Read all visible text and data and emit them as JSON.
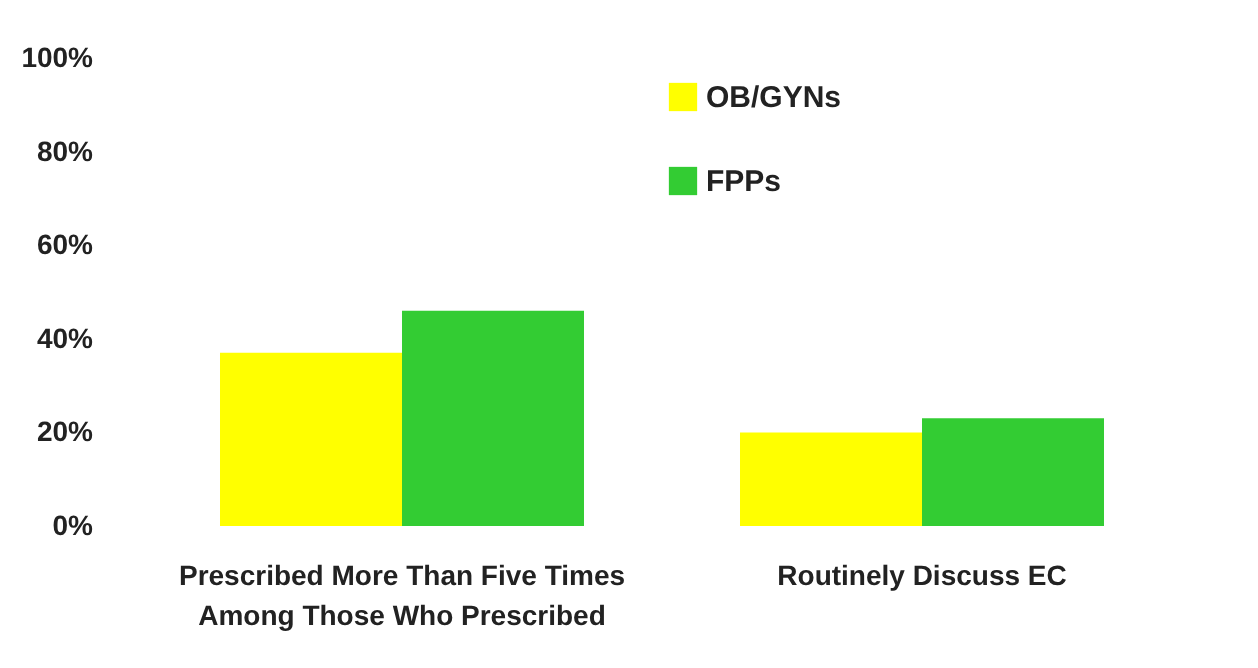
{
  "chart_data": {
    "type": "bar",
    "categories": [
      "Prescribed More Than Five Times Among Those Who Prescribed",
      "Routinely Discuss EC"
    ],
    "series": [
      {
        "name": "OB/GYNs",
        "color": "#ffff00",
        "values": [
          37,
          20
        ]
      },
      {
        "name": "FPPs",
        "color": "#33cc33",
        "values": [
          46,
          23
        ]
      }
    ],
    "ylim": [
      0,
      100
    ],
    "yticks": [
      {
        "value": 0,
        "label": "0%"
      },
      {
        "value": 20,
        "label": "20%"
      },
      {
        "value": 40,
        "label": "40%"
      },
      {
        "value": 60,
        "label": "60%"
      },
      {
        "value": 80,
        "label": "80%"
      },
      {
        "value": 100,
        "label": "100%"
      }
    ],
    "grid": false,
    "legend": "top right"
  }
}
